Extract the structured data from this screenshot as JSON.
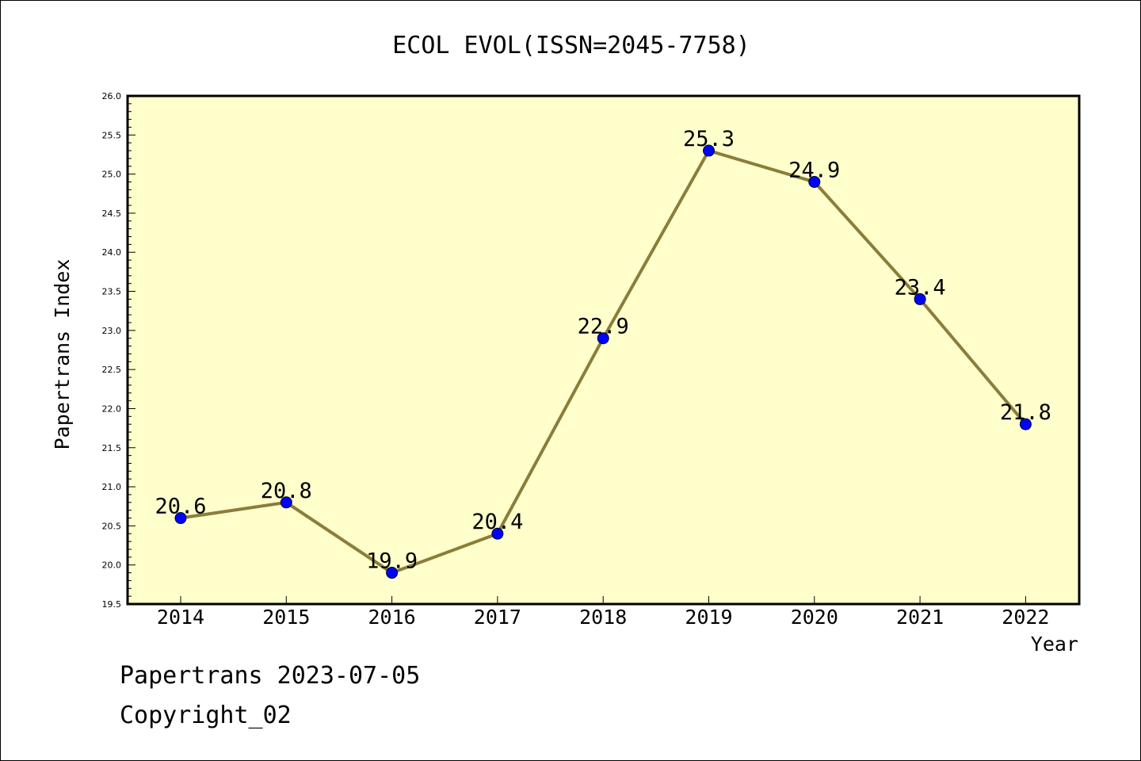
{
  "chart_data": {
    "type": "line",
    "title": "ECOL EVOL(ISSN=2045-7758)",
    "xlabel": "Year",
    "ylabel": "Papertrans Index",
    "categories": [
      "2014",
      "2015",
      "2016",
      "2017",
      "2018",
      "2019",
      "2020",
      "2021",
      "2022"
    ],
    "series": [
      {
        "values": [
          20.6,
          20.8,
          19.9,
          20.4,
          22.9,
          25.3,
          24.9,
          23.4,
          21.8
        ],
        "data_labels": [
          "20.6",
          "20.8",
          "19.9",
          "20.4",
          "22.9",
          "25.3",
          "24.9",
          "23.4",
          "21.8"
        ]
      }
    ],
    "ylim": [
      19.5,
      26.0
    ],
    "yticks": [
      "19.5",
      "20.0",
      "20.5",
      "21.0",
      "21.5",
      "22.0",
      "22.5",
      "23.0",
      "23.5",
      "24.0",
      "24.5",
      "25.0",
      "25.5",
      "26.0"
    ],
    "grid": false,
    "legend": "none",
    "colors": {
      "plot_background": "#ffffcc",
      "line": "#8b7d3a",
      "marker": "#0000ff",
      "axis": "#000000"
    }
  },
  "footer": {
    "date_line": "Papertrans 2023-07-05",
    "copyright": "Copyright_02"
  }
}
